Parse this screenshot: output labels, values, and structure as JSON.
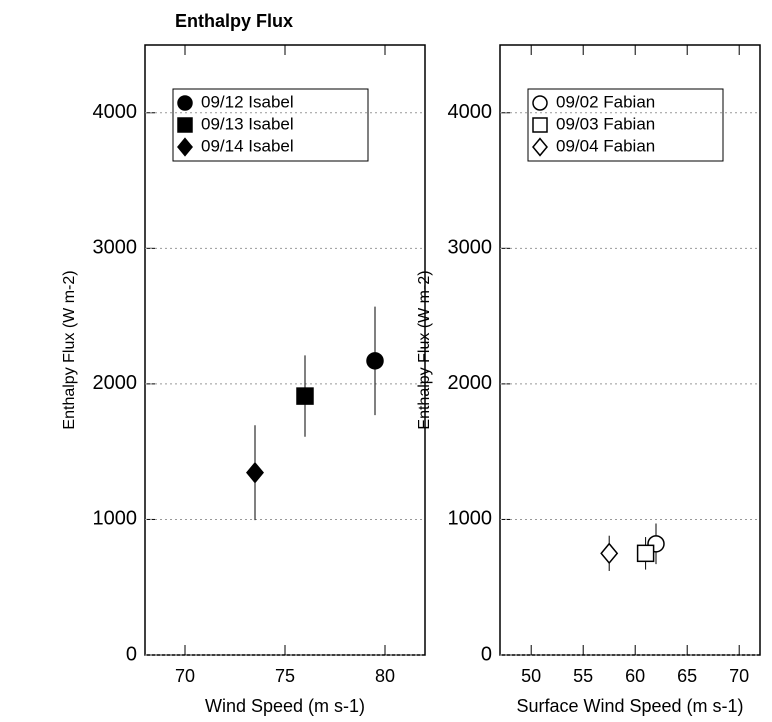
{
  "chart_data": [
    {
      "type": "scatter",
      "title": "Enthalpy Flux",
      "ylabel": "Enthalpy Flux (W m-2)",
      "xlabel": "Wind Speed (m s-1)",
      "xlim": [
        68,
        82
      ],
      "xticks": [
        70,
        75,
        80
      ],
      "ylim": [
        0,
        4500
      ],
      "yticks": [
        0,
        1000,
        2000,
        3000,
        4000
      ],
      "series": [
        {
          "name": "09/12 Isabel",
          "marker": "circle",
          "filled": true,
          "color": "#000000",
          "x": [
            79.5
          ],
          "values": [
            2170
          ],
          "errors": [
            400
          ]
        },
        {
          "name": "09/13 Isabel",
          "marker": "square",
          "filled": true,
          "color": "#000000",
          "x": [
            76
          ],
          "values": [
            1910
          ],
          "errors": [
            300
          ]
        },
        {
          "name": "09/14 Isabel",
          "marker": "diamond",
          "filled": true,
          "color": "#000000",
          "x": [
            73.5
          ],
          "values": [
            1345
          ],
          "errors": [
            350
          ]
        }
      ]
    },
    {
      "type": "scatter",
      "ylabel": "Enthalpy Flux (W m-2)",
      "xlabel": "Surface Wind Speed (m s-1)",
      "xlim": [
        47,
        72
      ],
      "xticks": [
        50,
        55,
        60,
        65,
        70
      ],
      "ylim": [
        0,
        4500
      ],
      "yticks": [
        0,
        1000,
        2000,
        3000,
        4000
      ],
      "series": [
        {
          "name": "09/02 Fabian",
          "marker": "circle",
          "filled": false,
          "color": "#000000",
          "x": [
            62
          ],
          "values": [
            820
          ],
          "errors": [
            150
          ]
        },
        {
          "name": "09/03 Fabian",
          "marker": "square",
          "filled": false,
          "color": "#000000",
          "x": [
            61
          ],
          "values": [
            750
          ],
          "errors": [
            120
          ]
        },
        {
          "name": "09/04 Fabian",
          "marker": "diamond",
          "filled": false,
          "color": "#000000",
          "x": [
            57.5
          ],
          "values": [
            750
          ],
          "errors": [
            130
          ]
        }
      ]
    }
  ]
}
